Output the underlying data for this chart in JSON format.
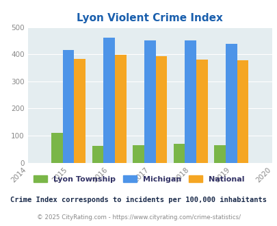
{
  "title": "Lyon Violent Crime Index",
  "years": [
    2015,
    2016,
    2017,
    2018,
    2019
  ],
  "xlim": [
    2014,
    2020
  ],
  "ylim": [
    0,
    500
  ],
  "yticks": [
    0,
    100,
    200,
    300,
    400,
    500
  ],
  "lyon": [
    110,
    62,
    65,
    70,
    65
  ],
  "michigan": [
    415,
    460,
    450,
    450,
    438
  ],
  "national": [
    383,
    397,
    394,
    381,
    379
  ],
  "color_lyon": "#7ab648",
  "color_michigan": "#4d94e8",
  "color_national": "#f5a623",
  "bar_width": 0.28,
  "axis_bg": "#e4edf0",
  "title_color": "#1a5fad",
  "legend_labels": [
    "Lyon Township",
    "Michigan",
    "National"
  ],
  "legend_text_color": "#333366",
  "subtitle": "Crime Index corresponds to incidents per 100,000 inhabitants",
  "footer": "© 2025 CityRating.com - https://www.cityrating.com/crime-statistics/",
  "subtitle_color": "#1a2a4a",
  "footer_color": "#888888",
  "tick_color": "#888888",
  "grid_color": "#ffffff"
}
